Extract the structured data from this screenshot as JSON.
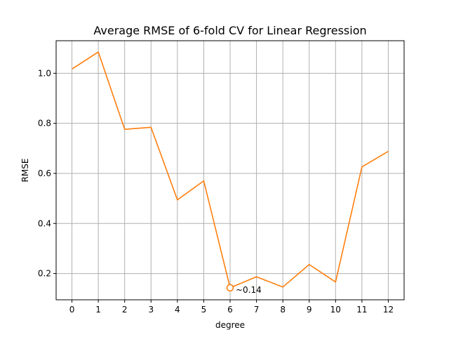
{
  "chart_data": {
    "type": "line",
    "title": "Average RMSE of 6-fold CV for Linear Regression",
    "xlabel": "degree",
    "ylabel": "RMSE",
    "x": [
      0,
      1,
      2,
      3,
      4,
      5,
      6,
      7,
      8,
      9,
      10,
      11,
      12
    ],
    "xticks": [
      "0",
      "1",
      "2",
      "3",
      "4",
      "5",
      "6",
      "7",
      "8",
      "9",
      "10",
      "11",
      "12"
    ],
    "yticks": [
      0.2,
      0.4,
      0.6,
      0.8,
      1.0
    ],
    "ytick_labels": [
      "0.2",
      "0.4",
      "0.6",
      "0.8",
      "1.0"
    ],
    "xlim": [
      -0.6,
      12.6
    ],
    "ylim": [
      0.095,
      1.13
    ],
    "grid": true,
    "series": [
      {
        "values": [
          1.017,
          1.085,
          0.776,
          0.784,
          0.494,
          0.57,
          0.143,
          0.187,
          0.146,
          0.236,
          0.166,
          0.626,
          0.688
        ],
        "color": "#ff7f0e"
      }
    ],
    "annotation": {
      "text": "~0.14",
      "x": 6,
      "y": 0.143,
      "marker": "open-circle"
    }
  }
}
